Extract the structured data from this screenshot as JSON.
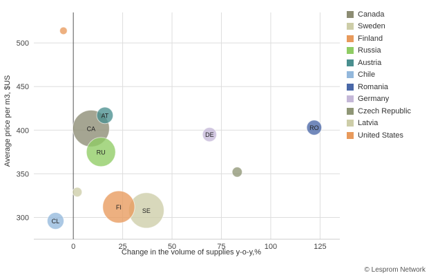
{
  "chart_data": {
    "type": "scatter",
    "variant": "bubble",
    "title": "",
    "xlabel": "Change in the volume of supplies y-o-y,%",
    "ylabel": "Average price per m3, $US",
    "xlim": [
      -20,
      135
    ],
    "ylim": [
      275,
      535
    ],
    "x_ticks": [
      0,
      25,
      50,
      75,
      100,
      125
    ],
    "y_ticks": [
      300,
      350,
      400,
      450,
      500
    ],
    "grid": true,
    "legend_position": "right",
    "series": [
      {
        "name": "Canada",
        "label": "CA",
        "x": 9,
        "y": 402,
        "size": 6,
        "color": "#8c8c73"
      },
      {
        "name": "Sweden",
        "label": "SE",
        "x": 37,
        "y": 308,
        "size": 5.6,
        "color": "#cdcda8"
      },
      {
        "name": "Finland",
        "label": "FI",
        "x": 23,
        "y": 312,
        "size": 4.6,
        "color": "#e89a5c"
      },
      {
        "name": "Russia",
        "label": "RU",
        "x": 14,
        "y": 375,
        "size": 3.8,
        "color": "#8fcc64"
      },
      {
        "name": "Austria",
        "label": "AT",
        "x": 16,
        "y": 417,
        "size": 1.2,
        "color": "#4a8f8f"
      },
      {
        "name": "Chile",
        "label": "CL",
        "x": -9,
        "y": 296,
        "size": 1.25,
        "color": "#93b8dc"
      },
      {
        "name": "Romania",
        "label": "RO",
        "x": 122,
        "y": 403,
        "size": 1.0,
        "color": "#4a68a8"
      },
      {
        "name": "Germany",
        "label": "DE",
        "x": 69,
        "y": 395,
        "size": 0.9,
        "color": "#c5b8d8"
      },
      {
        "name": "Czech Republic",
        "label": "",
        "x": 83,
        "y": 352,
        "size": 0.45,
        "color": "#8f9676"
      },
      {
        "name": "Latvia",
        "label": "",
        "x": 2,
        "y": 329,
        "size": 0.4,
        "color": "#cdcda8"
      },
      {
        "name": "United States",
        "label": "",
        "x": -5,
        "y": 514,
        "size": 0.25,
        "color": "#e89a5c"
      }
    ]
  },
  "credit": "© Lesprom Network"
}
